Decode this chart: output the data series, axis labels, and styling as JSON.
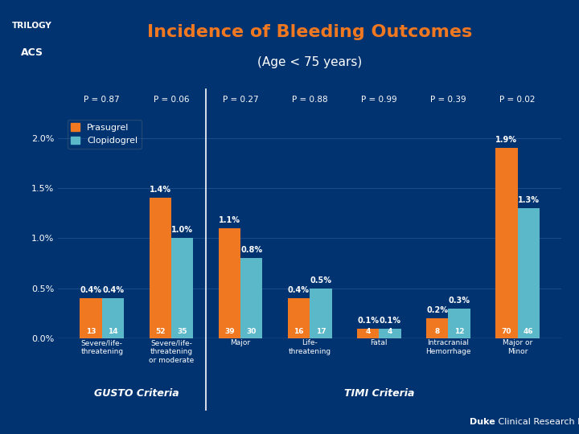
{
  "title": "Incidence of Bleeding Outcomes",
  "subtitle": "(Age < 75 years)",
  "bg_color": "#003370",
  "bar_color_prasugrel": "#F07820",
  "bar_color_clopidogrel": "#5BB8C8",
  "grid_color": "#1A4A8A",
  "text_color": "#FFFFFF",
  "groups": [
    {
      "label": "Severe/life-\nthreatening",
      "p": "P = 0.87",
      "prasugrel": 0.4,
      "clopidogrel": 0.4,
      "n_pras": 13,
      "n_clop": 14
    },
    {
      "label": "Severe/life-\nthreatening\nor moderate",
      "p": "P = 0.06",
      "prasugrel": 1.4,
      "clopidogrel": 1.0,
      "n_pras": 52,
      "n_clop": 35
    },
    {
      "label": "Major",
      "p": "P = 0.27",
      "prasugrel": 1.1,
      "clopidogrel": 0.8,
      "n_pras": 39,
      "n_clop": 30
    },
    {
      "label": "Life-\nthreatening",
      "p": "P = 0.88",
      "prasugrel": 0.4,
      "clopidogrel": 0.5,
      "n_pras": 16,
      "n_clop": 17
    },
    {
      "label": "Fatal",
      "p": "P = 0.99",
      "prasugrel": 0.1,
      "clopidogrel": 0.1,
      "n_pras": 4,
      "n_clop": 4
    },
    {
      "label": "Intracranial\nHemorrhage",
      "p": "P = 0.39",
      "prasugrel": 0.2,
      "clopidogrel": 0.3,
      "n_pras": 8,
      "n_clop": 12
    },
    {
      "label": "Major or\nMinor",
      "p": "P = 0.02",
      "prasugrel": 1.9,
      "clopidogrel": 1.3,
      "n_pras": 70,
      "n_clop": 46
    }
  ],
  "gusto_indices": [
    0,
    1
  ],
  "timi_indices": [
    2,
    3,
    4,
    5,
    6
  ],
  "gusto_label": "GUSTO Criteria",
  "timi_label": "TIMI Criteria",
  "ylim": [
    0.0,
    2.25
  ],
  "yticks": [
    0.0,
    0.5,
    1.0,
    1.5,
    2.0
  ],
  "ytick_labels": [
    "0.0%",
    "0.5%",
    "1.0%",
    "1.5%",
    "2.0%"
  ],
  "legend_prasugrel": "Prasugrel",
  "legend_clopidogrel": "Clopidogrel",
  "title_color": "#F07820",
  "duke_bold": "Duke",
  "duke_regular": " Clinical Research Institute",
  "duke_bg": "#001830"
}
